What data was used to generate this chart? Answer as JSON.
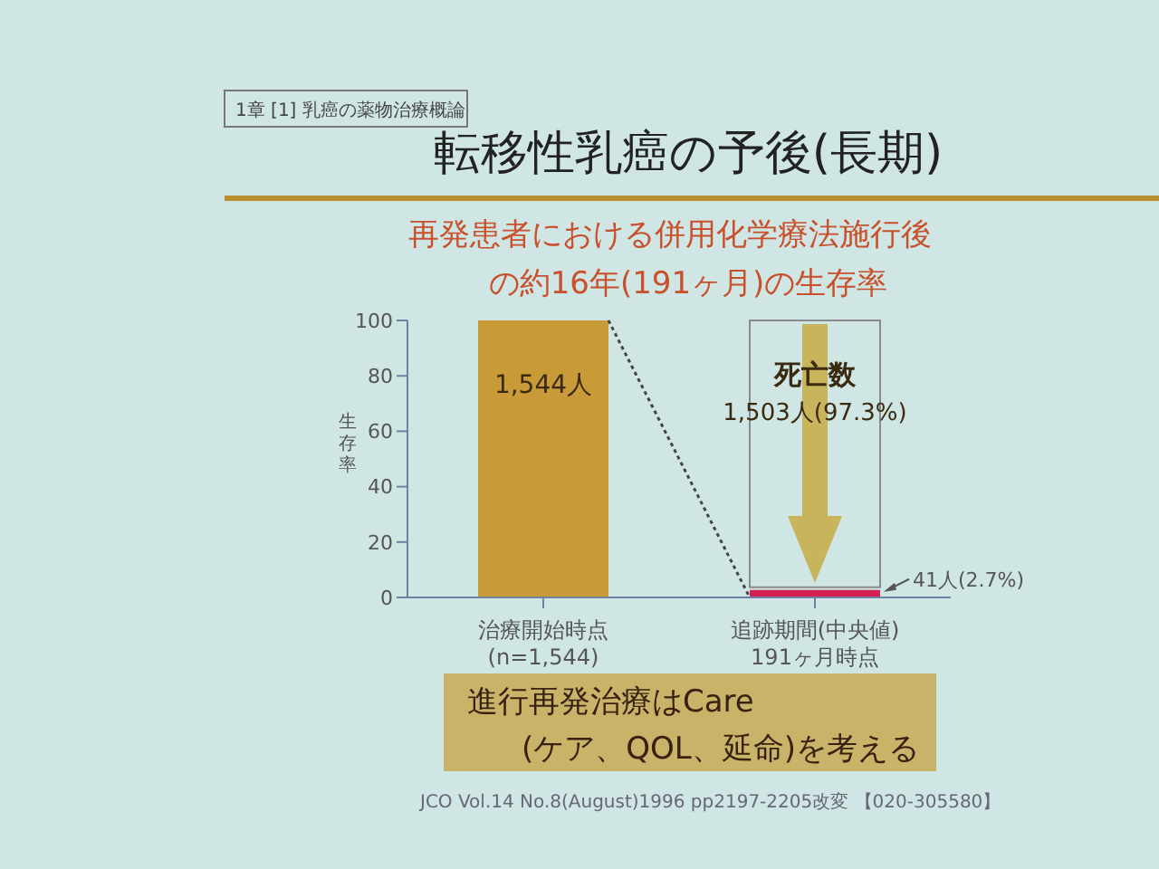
{
  "chart_data": {
    "type": "bar",
    "title": "転移性乳癌の予後(長期)",
    "subtitle": "再発患者における併用化学療法施行後の約16年(191ヶ月)の生存率",
    "ylabel": "生存率",
    "categories": [
      "治療開始時点\n(n=1,544)",
      "追跡期間(中央値)\n191ヶ月時点"
    ],
    "values": [
      100,
      2.7
    ],
    "colors": [
      "#c89a38",
      "#d42050"
    ],
    "value_labels": [
      null,
      "41人(2.7%)"
    ],
    "ylim": [
      0,
      100
    ],
    "yticks": [
      0,
      20,
      40,
      60,
      80,
      100
    ],
    "annotations": [
      "1章 [1] 乳癌の薬物治療概論",
      "1,544人",
      "死亡数",
      "1,503人(97.3%)",
      "進行再発治療はCare",
      "(ケア、QOL、延命)を考える",
      "JCO Vol.14 No.8(August)1996 pp2197-2205改変 【020-305580】"
    ]
  }
}
